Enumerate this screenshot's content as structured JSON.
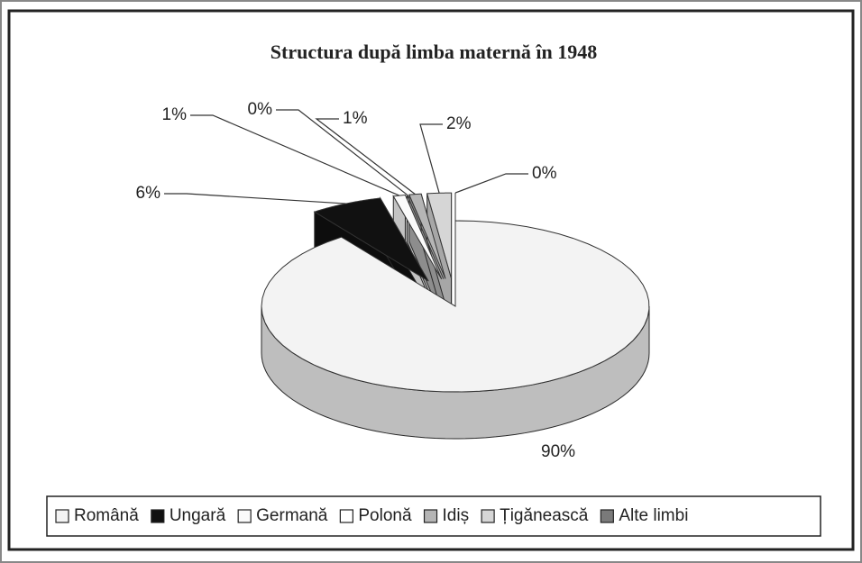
{
  "chart_data": {
    "type": "pie",
    "title": "Structura după limba maternă în 1948",
    "categories": [
      "Română",
      "Ungară",
      "Germană",
      "Polonă",
      "Idiș",
      "Țigănească",
      "Alte limbi"
    ],
    "values": [
      90,
      6,
      1,
      0,
      1,
      2,
      0
    ],
    "value_labels": [
      "90%",
      "6%",
      "1%",
      "0%",
      "1%",
      "2%",
      "0%"
    ],
    "colors": [
      "#f3f3f3",
      "#111111",
      "#fafafa",
      "#ffffff",
      "#b5b5b5",
      "#d6d6d6",
      "#7a7a7a"
    ],
    "legend": "bottom"
  }
}
